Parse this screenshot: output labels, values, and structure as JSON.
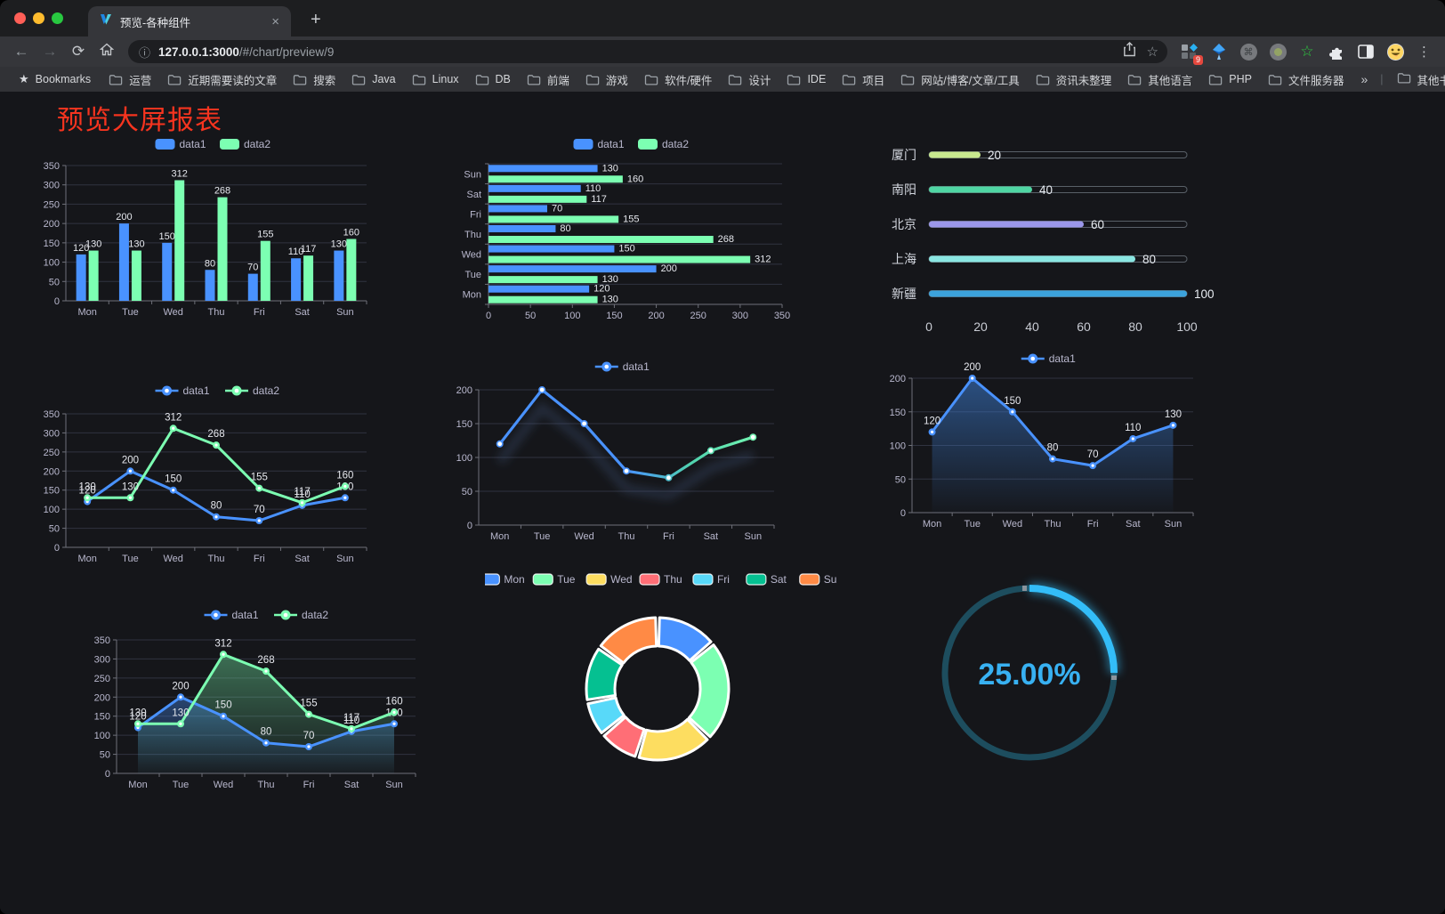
{
  "browser": {
    "tab_title": "预览-各种组件",
    "url_host": "127.0.0.1:3000",
    "url_path": "/#/chart/preview/9",
    "bookmarks_label": "Bookmarks",
    "bookmarks": [
      "运营",
      "近期需要读的文章",
      "搜索",
      "Java",
      "Linux",
      "DB",
      "前端",
      "游戏",
      "软件/硬件",
      "设计",
      "IDE",
      "项目",
      "网站/博客/文章/工具",
      "资讯未整理",
      "其他语言",
      "PHP",
      "文件服务器"
    ],
    "other_bookmarks": "其他书签",
    "extension_badge": "9",
    "icons": {
      "back": "←",
      "forward": "→",
      "reload": "⟳",
      "info": "ⓘ",
      "url_star": "☆",
      "bookmarks_star": "★",
      "close": "×",
      "new_tab": "+",
      "kebab": "⋮",
      "cmd": "⌘",
      "green_star": "☆",
      "overflow": "»"
    }
  },
  "page": {
    "title": "预览大屏报表",
    "title_color": "#f6341f"
  },
  "chart_data": [
    {
      "id": "grouped-bar",
      "type": "bar",
      "categories": [
        "Mon",
        "Tue",
        "Wed",
        "Thu",
        "Fri",
        "Sat",
        "Sun"
      ],
      "series": [
        {
          "name": "data1",
          "color": "#4992ff",
          "values": [
            120,
            200,
            150,
            80,
            70,
            110,
            130
          ]
        },
        {
          "name": "data2",
          "color": "#7cffb2",
          "values": [
            130,
            130,
            312,
            268,
            155,
            117,
            160
          ]
        }
      ],
      "ylim": [
        0,
        350
      ],
      "ytick_step": 50,
      "grid": true,
      "legend_position": "top"
    },
    {
      "id": "horizontal-bar",
      "type": "bar",
      "orientation": "horizontal",
      "categories": [
        "Mon",
        "Tue",
        "Wed",
        "Thu",
        "Fri",
        "Sat",
        "Sun"
      ],
      "series": [
        {
          "name": "data1",
          "color": "#4992ff",
          "values": [
            120,
            200,
            150,
            80,
            70,
            110,
            130
          ]
        },
        {
          "name": "data2",
          "color": "#7cffb2",
          "values": [
            130,
            130,
            312,
            268,
            155,
            117,
            160
          ]
        }
      ],
      "xlim": [
        0,
        350
      ],
      "xtick_step": 50,
      "grid": true,
      "legend_position": "top"
    },
    {
      "id": "progress-bars",
      "type": "bar",
      "subtype": "progress",
      "rows": [
        {
          "label": "厦门",
          "value": 20,
          "color": "#c8e98e"
        },
        {
          "label": "南阳",
          "value": 40,
          "color": "#4fd6a3"
        },
        {
          "label": "北京",
          "value": 60,
          "color": "#9b97ea"
        },
        {
          "label": "上海",
          "value": 80,
          "color": "#8ae6e2"
        },
        {
          "label": "新疆",
          "value": 100,
          "color": "#3ca3dc"
        }
      ],
      "axis_ticks": [
        0,
        20,
        40,
        60,
        80,
        100
      ],
      "max": 100
    },
    {
      "id": "dual-line",
      "type": "line",
      "categories": [
        "Mon",
        "Tue",
        "Wed",
        "Thu",
        "Fri",
        "Sat",
        "Sun"
      ],
      "series": [
        {
          "name": "data1",
          "color": "#4992ff",
          "values": [
            120,
            200,
            150,
            80,
            70,
            110,
            130
          ]
        },
        {
          "name": "data2",
          "color": "#7cffb2",
          "values": [
            130,
            130,
            312,
            268,
            155,
            117,
            160
          ]
        }
      ],
      "ylim": [
        0,
        350
      ],
      "ytick_step": 50,
      "value_labels": true,
      "legend_position": "top"
    },
    {
      "id": "gradient-line",
      "type": "line",
      "categories": [
        "Mon",
        "Tue",
        "Wed",
        "Thu",
        "Fri",
        "Sat",
        "Sun"
      ],
      "series": [
        {
          "name": "data1",
          "color": "#4992ff",
          "gradient": [
            "#4992ff",
            "#7cffb2"
          ],
          "values": [
            120,
            200,
            150,
            80,
            70,
            110,
            130
          ]
        }
      ],
      "ylim": [
        0,
        200
      ],
      "ytick_step": 50,
      "value_labels": false,
      "legend_position": "top"
    },
    {
      "id": "single-area",
      "type": "area",
      "categories": [
        "Mon",
        "Tue",
        "Wed",
        "Thu",
        "Fri",
        "Sat",
        "Sun"
      ],
      "series": [
        {
          "name": "data1",
          "color": "#4992ff",
          "fill": true,
          "values": [
            120,
            200,
            150,
            80,
            70,
            110,
            130
          ]
        }
      ],
      "ylim": [
        0,
        200
      ],
      "ytick_step": 50,
      "value_labels": true,
      "legend_position": "top"
    },
    {
      "id": "dual-area",
      "type": "area",
      "categories": [
        "Mon",
        "Tue",
        "Wed",
        "Thu",
        "Fri",
        "Sat",
        "Sun"
      ],
      "series": [
        {
          "name": "data1",
          "color": "#4992ff",
          "fill": true,
          "values": [
            120,
            200,
            150,
            80,
            70,
            110,
            130
          ]
        },
        {
          "name": "data2",
          "color": "#7cffb2",
          "fill": true,
          "values": [
            130,
            130,
            312,
            268,
            155,
            117,
            160
          ]
        }
      ],
      "ylim": [
        0,
        350
      ],
      "ytick_step": 50,
      "value_labels": true,
      "legend_position": "top"
    },
    {
      "id": "donut",
      "type": "pie",
      "labels": [
        "Mon",
        "Tue",
        "Wed",
        "Thu",
        "Fri",
        "Sat",
        "Sun"
      ],
      "values": [
        120,
        200,
        150,
        80,
        70,
        110,
        130
      ],
      "colors": [
        "#4992ff",
        "#7cffb2",
        "#fddd60",
        "#ff6e76",
        "#58d9f9",
        "#05c091",
        "#ff8a45"
      ],
      "inner_radius_ratio": 0.6,
      "legend_position": "top"
    },
    {
      "id": "gauge",
      "type": "gauge",
      "value": 25,
      "label": "25.00%",
      "max": 100,
      "color": "#33bdf8",
      "track_color": "#1d4d5e",
      "text_color": "#38b1f2"
    }
  ]
}
